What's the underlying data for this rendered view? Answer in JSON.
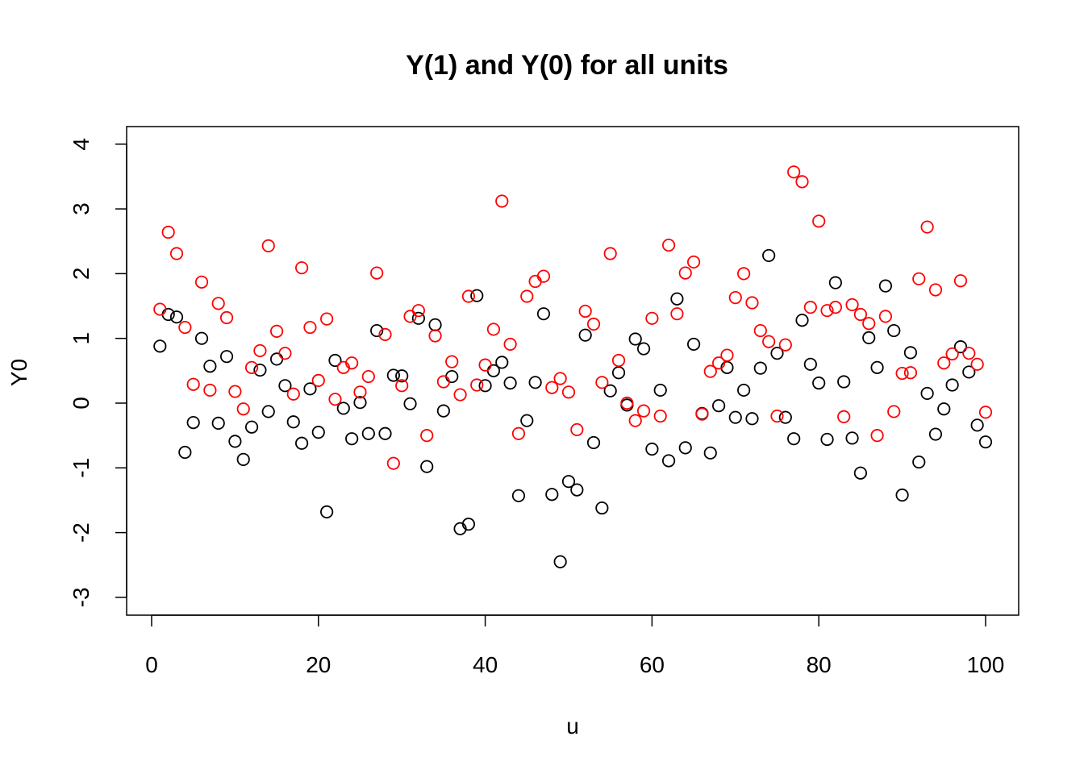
{
  "chart_data": {
    "type": "scatter",
    "title": "Y(1) and Y(0) for all units",
    "xlabel": "u",
    "ylabel": "Y0",
    "xlim": [
      0,
      100
    ],
    "ylim": [
      -3,
      4
    ],
    "x_ticks": [
      "0",
      "20",
      "40",
      "60",
      "80",
      "100"
    ],
    "y_ticks": [
      "-3",
      "-2",
      "-1",
      "0",
      "1",
      "2",
      "3",
      "4"
    ],
    "grid": false,
    "legend": "none",
    "x": [
      1,
      2,
      3,
      4,
      5,
      6,
      7,
      8,
      9,
      10,
      11,
      12,
      13,
      14,
      15,
      16,
      17,
      18,
      19,
      20,
      21,
      22,
      23,
      24,
      25,
      26,
      27,
      28,
      29,
      30,
      31,
      32,
      33,
      34,
      35,
      36,
      37,
      38,
      39,
      40,
      41,
      42,
      43,
      44,
      45,
      46,
      47,
      48,
      49,
      50,
      51,
      52,
      53,
      54,
      55,
      56,
      57,
      58,
      59,
      60,
      61,
      62,
      63,
      64,
      65,
      66,
      67,
      68,
      69,
      70,
      71,
      72,
      73,
      74,
      75,
      76,
      77,
      78,
      79,
      80,
      81,
      82,
      83,
      84,
      85,
      86,
      87,
      88,
      89,
      90,
      91,
      92,
      93,
      94,
      95,
      96,
      97,
      98,
      99,
      100
    ],
    "series": [
      {
        "color": "#000000",
        "values": [
          0.88,
          1.37,
          1.33,
          -0.76,
          -0.3,
          1.0,
          0.57,
          -0.31,
          0.72,
          -0.59,
          -0.87,
          -0.37,
          0.51,
          -0.13,
          0.68,
          0.27,
          -0.29,
          -0.62,
          0.22,
          -0.45,
          -1.68,
          0.66,
          -0.08,
          -0.55,
          0.01,
          -0.47,
          1.12,
          -0.47,
          0.43,
          0.42,
          -0.01,
          1.31,
          -0.98,
          1.21,
          -0.12,
          0.41,
          -1.94,
          -1.87,
          1.66,
          0.27,
          0.5,
          0.63,
          0.31,
          -1.43,
          -0.27,
          0.32,
          1.38,
          -1.41,
          -2.45,
          -1.21,
          -1.34,
          1.05,
          -0.61,
          -1.62,
          0.19,
          0.47,
          -0.03,
          0.99,
          0.84,
          -0.71,
          0.2,
          -0.89,
          1.61,
          -0.69,
          0.91,
          -0.16,
          -0.77,
          -0.04,
          0.55,
          -0.22,
          0.2,
          -0.24,
          0.54,
          2.28,
          0.77,
          -0.22,
          -0.55,
          1.28,
          0.6,
          0.31,
          -0.56,
          1.86,
          0.33,
          -0.54,
          -1.08,
          1.01,
          0.55,
          1.81,
          1.12,
          -1.42,
          0.78,
          -0.91,
          0.15,
          -0.48,
          -0.09,
          0.28,
          0.87,
          0.48,
          -0.34,
          -0.6
        ]
      },
      {
        "color": "#ff0000",
        "values": [
          1.45,
          2.64,
          2.31,
          1.17,
          0.29,
          1.87,
          0.2,
          1.54,
          1.32,
          0.18,
          -0.09,
          0.55,
          0.81,
          2.43,
          1.11,
          0.77,
          0.14,
          2.09,
          1.17,
          0.35,
          1.3,
          0.06,
          0.55,
          0.62,
          0.17,
          0.41,
          2.01,
          1.06,
          -0.93,
          0.27,
          1.34,
          1.43,
          -0.5,
          1.04,
          0.33,
          0.64,
          0.13,
          1.65,
          0.28,
          0.59,
          1.14,
          3.12,
          0.91,
          -0.47,
          1.65,
          1.88,
          1.96,
          0.24,
          0.38,
          0.17,
          -0.41,
          1.42,
          1.22,
          0.32,
          2.31,
          0.66,
          0.0,
          -0.27,
          -0.12,
          1.31,
          -0.2,
          2.44,
          1.38,
          2.01,
          2.18,
          -0.17,
          0.49,
          0.62,
          0.74,
          1.63,
          2.0,
          1.55,
          1.12,
          0.95,
          -0.2,
          0.9,
          3.57,
          3.42,
          1.48,
          2.81,
          1.43,
          1.48,
          -0.21,
          1.52,
          1.37,
          1.23,
          -0.5,
          1.34,
          -0.13,
          0.46,
          0.47,
          1.92,
          2.72,
          1.75,
          0.62,
          0.76,
          1.89,
          0.77,
          0.6,
          -0.14
        ]
      }
    ]
  }
}
